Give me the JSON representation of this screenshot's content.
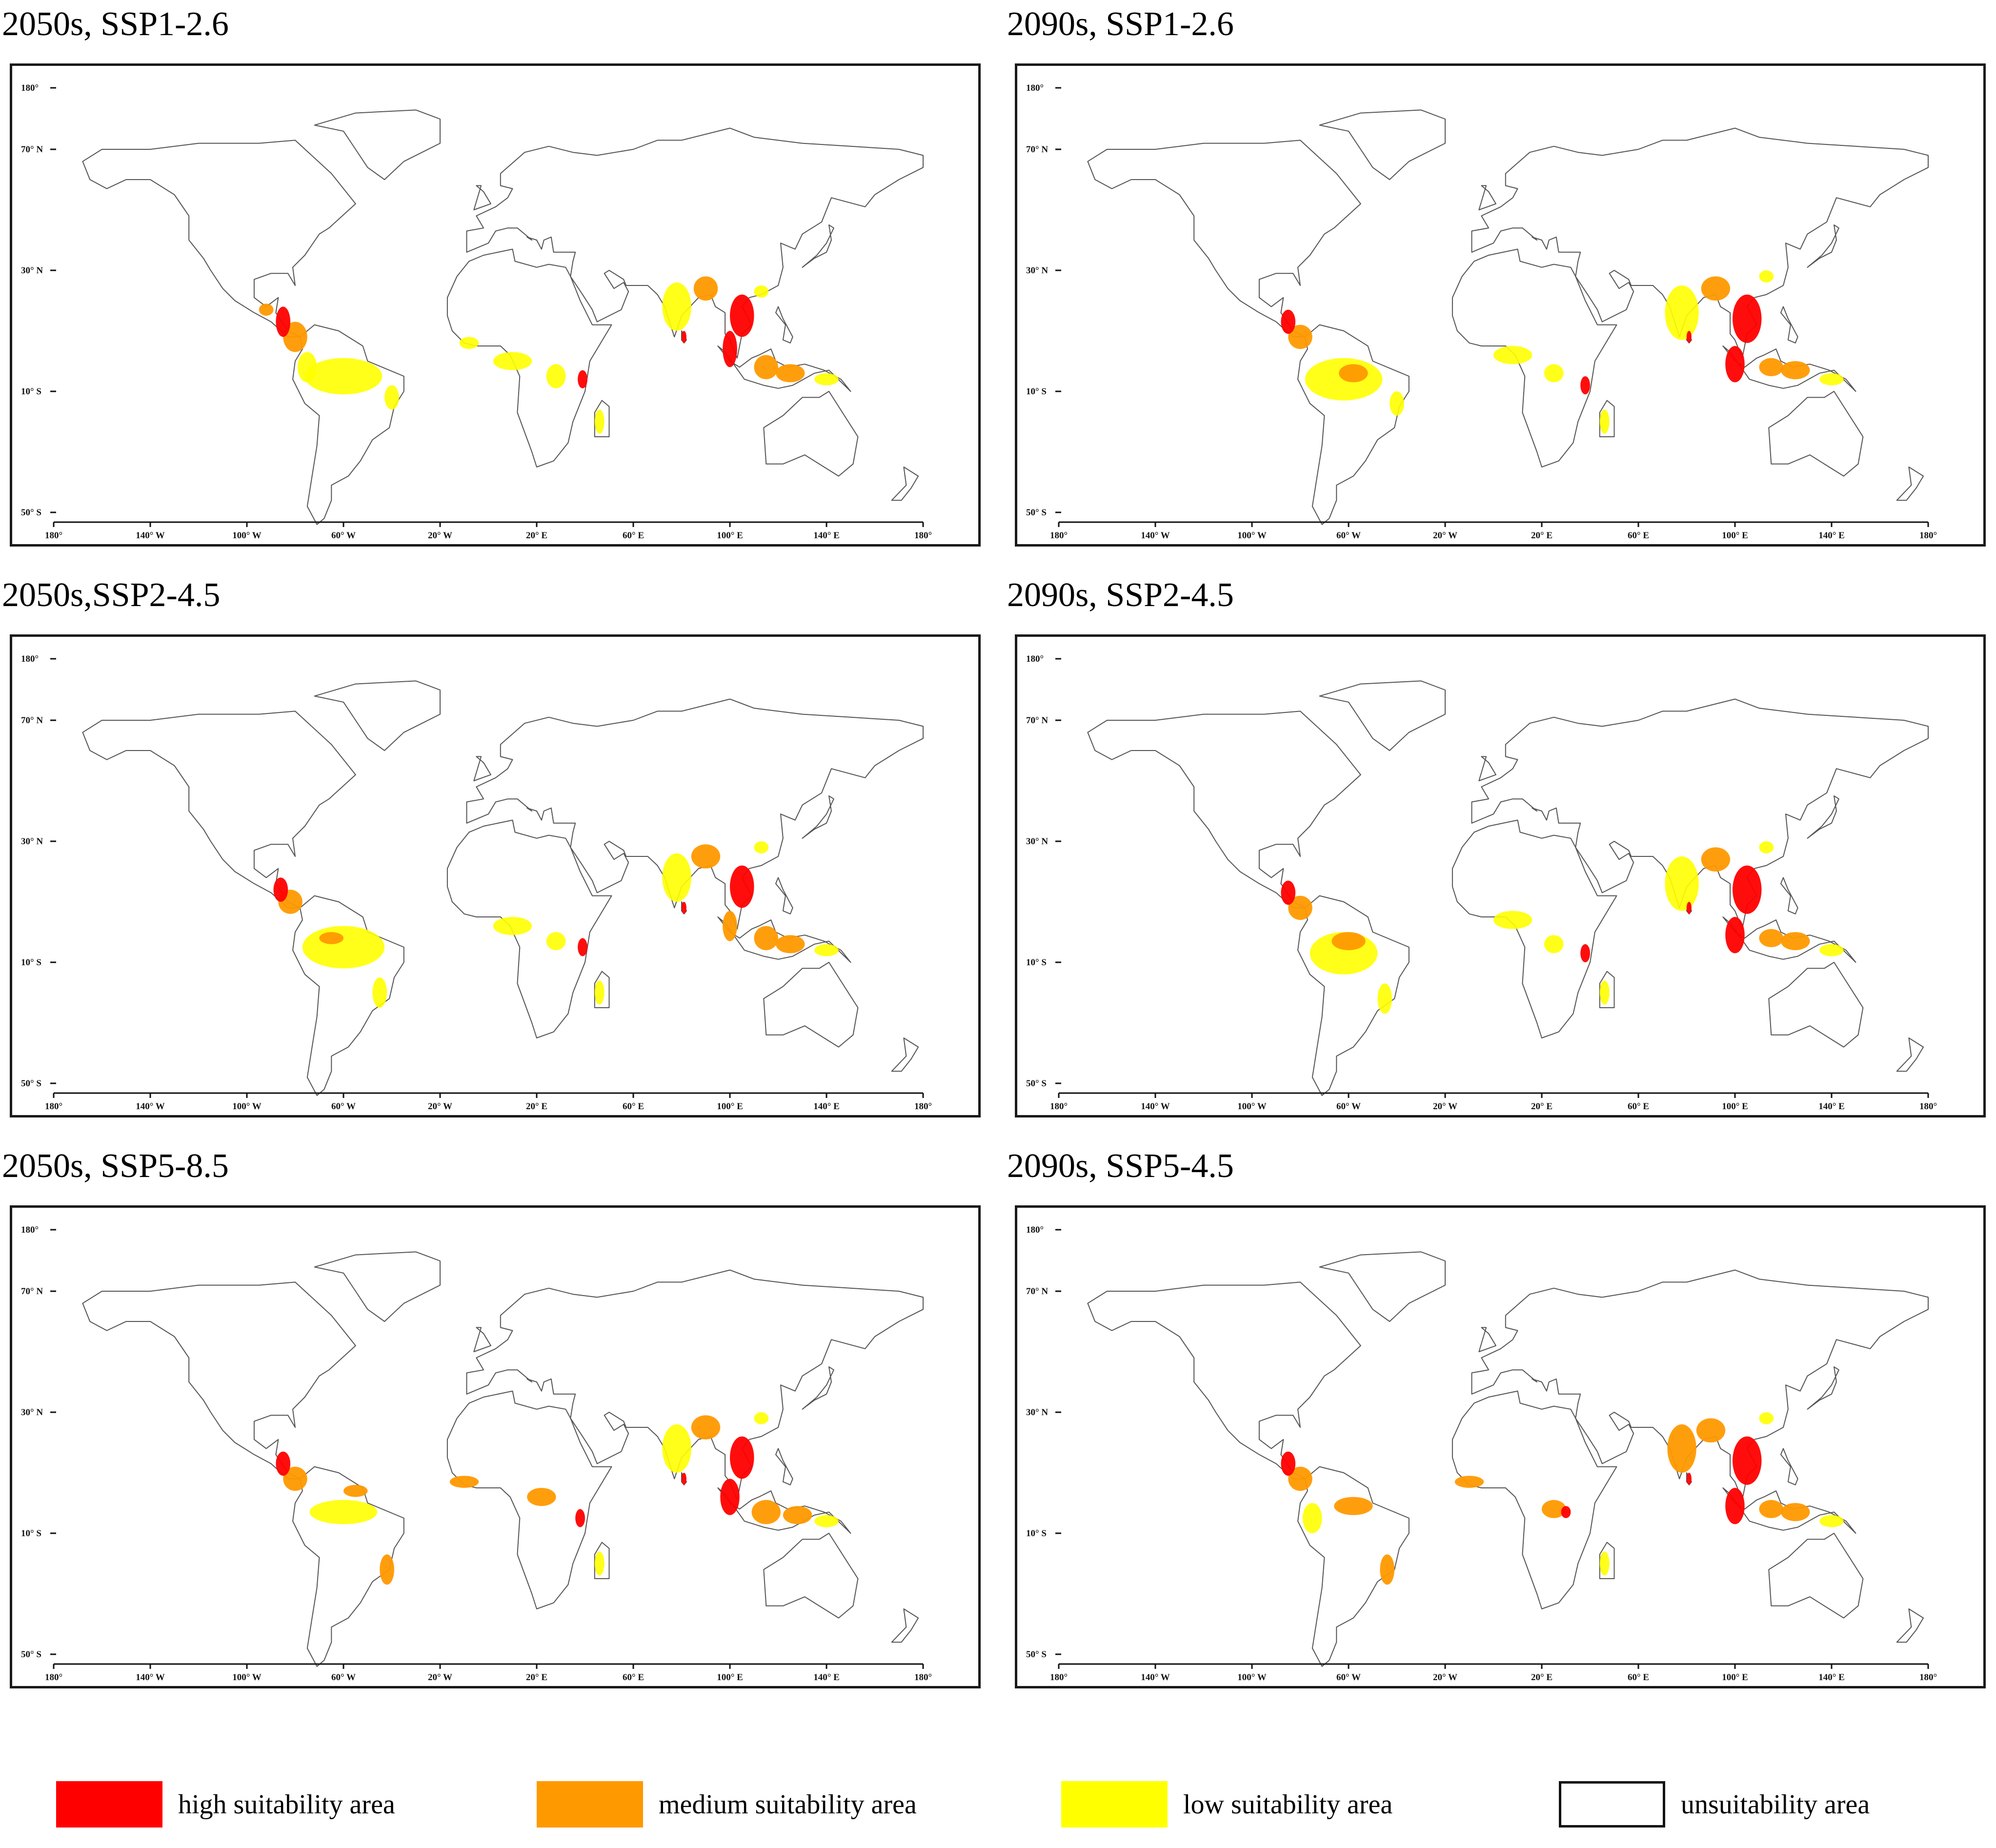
{
  "panels": [
    {
      "title": "2050s, SSP1-2.6"
    },
    {
      "title": "2090s, SSP1-2.6"
    },
    {
      "title": "2050s,SSP2-4.5"
    },
    {
      "title": "2090s, SSP2-4.5"
    },
    {
      "title": "2050s, SSP5-8.5"
    },
    {
      "title": "2090s, SSP5-4.5"
    }
  ],
  "axes": {
    "lat_labels": [
      "180°",
      "70° N",
      "30° N",
      "10° S",
      "50° S"
    ],
    "lon_labels": [
      "180°",
      "140° W",
      "100° W",
      "60° W",
      "20° W",
      "20° E",
      "60° E",
      "100° E",
      "140° E",
      "180°"
    ]
  },
  "legend": [
    {
      "label": "high suitability area",
      "color": "#ff0000"
    },
    {
      "label": "medium suitability area",
      "color": "#ff9900"
    },
    {
      "label": "low suitability area",
      "color": "#ffff00"
    },
    {
      "label": "unsuitability area",
      "color": "#ffffff"
    }
  ]
}
